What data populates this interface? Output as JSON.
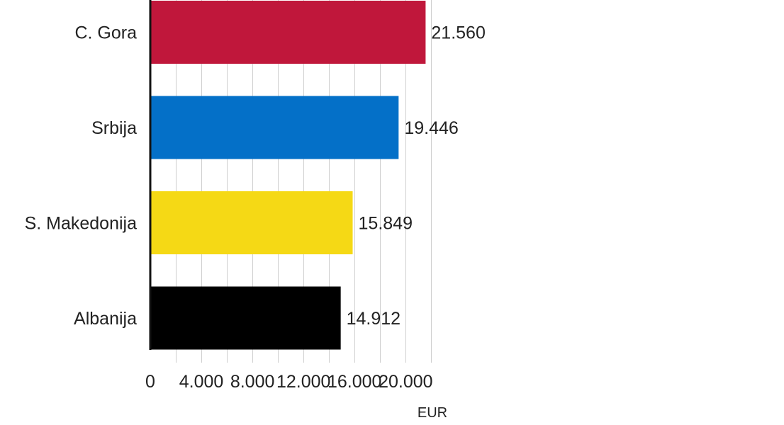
{
  "chart_data": {
    "type": "bar",
    "orientation": "horizontal",
    "categories": [
      "C. Gora",
      "Srbija",
      "S. Makedonija",
      "Albanija"
    ],
    "values": [
      21560,
      19446,
      15849,
      14912
    ],
    "value_labels": [
      "21.560",
      "19.446",
      "15.849",
      "14.912"
    ],
    "colors": [
      "#c0173b",
      "#0470c8",
      "#f5d915",
      "#000000"
    ],
    "xlabel": "EUR",
    "xlim": [
      0,
      22000
    ],
    "xticks": [
      0,
      4000,
      8000,
      12000,
      16000,
      20000
    ],
    "xtick_labels": [
      "0",
      "4.000",
      "8.000",
      "12.000",
      "16.000",
      "20.000"
    ],
    "grid": true,
    "legend": "none"
  }
}
